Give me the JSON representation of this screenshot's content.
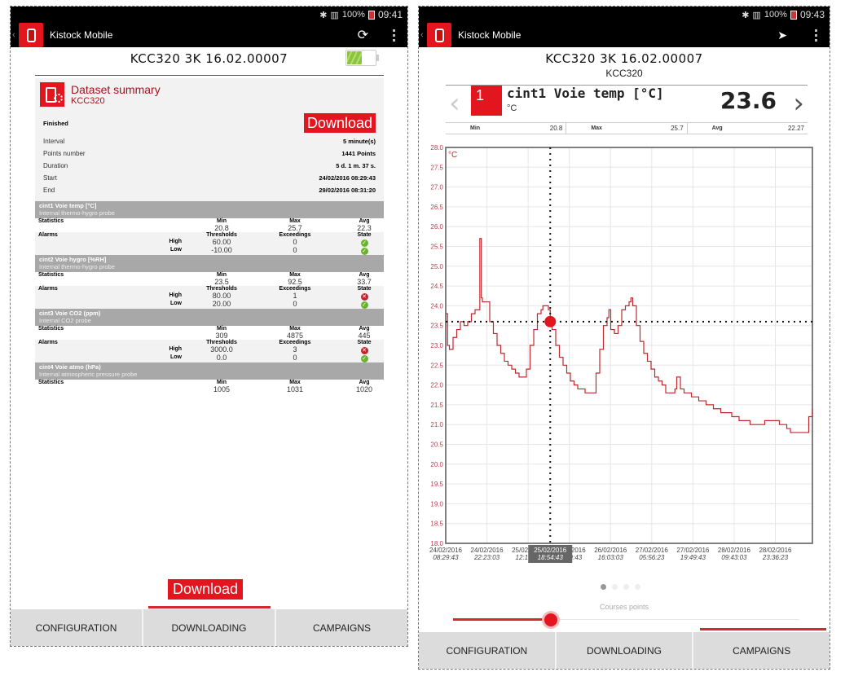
{
  "left_screen": {
    "status_bar": {
      "icons": [
        "bluetooth-icon",
        "signal-icon"
      ],
      "battery": "100%",
      "time": "09:41"
    },
    "app_bar": {
      "title": "Kistock Mobile",
      "actions": [
        "refresh-icon",
        "overflow-menu-icon"
      ]
    },
    "device_title": "KCC320 3K 16.02.00007",
    "summary": {
      "title": "Dataset summary",
      "subtitle": "KCC320",
      "status": "Finished",
      "download_label": "Download",
      "info": [
        {
          "label": "Interval",
          "value": "5 minute(s)"
        },
        {
          "label": "Points number",
          "value": "1441 Points"
        },
        {
          "label": "Duration",
          "value": "5 d. 1 m. 37 s."
        },
        {
          "label": "Start",
          "value": "24/02/2016 08:29:43"
        },
        {
          "label": "End",
          "value": "29/02/2016 08:31:20"
        }
      ],
      "labels": {
        "statistics": "Statistics",
        "alarms": "Alarms",
        "min": "Min",
        "max": "Max",
        "avg": "Avg",
        "thresholds": "Thresholds",
        "exceedings": "Exceedings",
        "state": "State",
        "high": "High",
        "low": "Low"
      },
      "channels": [
        {
          "name": "cint1 Voie temp [°C]",
          "probe": "Internal thermo-hygro probe",
          "min": "20.8",
          "max": "25.7",
          "avg": "22.3",
          "alarms": {
            "high": {
              "threshold": "60.00",
              "exceedings": "0",
              "state": "ok"
            },
            "low": {
              "threshold": "-10.00",
              "exceedings": "0",
              "state": "ok"
            }
          }
        },
        {
          "name": "cint2 Voie hygro [%RH]",
          "probe": "Internal thermo-hygro probe",
          "min": "23.5",
          "max": "92.5",
          "avg": "33.7",
          "alarms": {
            "high": {
              "threshold": "80.00",
              "exceedings": "1",
              "state": "error"
            },
            "low": {
              "threshold": "20.00",
              "exceedings": "0",
              "state": "ok"
            }
          }
        },
        {
          "name": "cint3 Voie CO2 (ppm)",
          "probe": "Internal CO2 probe",
          "min": "309",
          "max": "4875",
          "avg": "445",
          "alarms": {
            "high": {
              "threshold": "3000.0",
              "exceedings": "3",
              "state": "error"
            },
            "low": {
              "threshold": "0.0",
              "exceedings": "0",
              "state": "ok"
            }
          }
        },
        {
          "name": "cint4 Voie atmo (hPa)",
          "probe": "Internal atmospheric pressure probe",
          "min": "1005",
          "max": "1031",
          "avg": "1020"
        }
      ]
    },
    "bottom_download_label": "Download",
    "tabs": [
      {
        "label": "CONFIGURATION"
      },
      {
        "label": "DOWNLOADING",
        "active": true
      },
      {
        "label": "CAMPAIGNS"
      }
    ]
  },
  "right_screen": {
    "status_bar": {
      "icons": [
        "bluetooth-icon",
        "signal-icon"
      ],
      "battery": "100%",
      "time": "09:43"
    },
    "app_bar": {
      "title": "Kistock Mobile",
      "actions": [
        "send-icon",
        "overflow-menu-icon"
      ]
    },
    "device_title": "KCC320 3K 16.02.00007",
    "device_subtitle": "KCC320",
    "channel": {
      "number": "1",
      "name": "cint1 Voie temp [°C]",
      "unit": "°C",
      "current_value": "23.6"
    },
    "stats": {
      "min_label": "Min",
      "min": "20.8",
      "max_label": "Max",
      "max": "25.7",
      "avg_label": "Avg",
      "avg": "22.27"
    },
    "pager": {
      "pages": 4,
      "active": 0
    },
    "slider_label": "Courses points",
    "slider_position": 0.28,
    "tabs": [
      {
        "label": "CONFIGURATION"
      },
      {
        "label": "DOWNLOADING"
      },
      {
        "label": "CAMPAIGNS",
        "active": true
      }
    ]
  },
  "colors": {
    "brand_red": "#e3151f",
    "dark_red_text": "#a0151d",
    "line": "#c0282f",
    "tab_bg": "#dcdcdc",
    "ok": "#6ab42d",
    "error": "#c8202a"
  },
  "chart_data": {
    "type": "line",
    "title": "cint1 Voie temp [°C]",
    "xlabel": "",
    "ylabel": "°C",
    "ylim": [
      18.0,
      28.0
    ],
    "yticks": [
      "18.0",
      "18.5",
      "19.0",
      "19.5",
      "20.0",
      "20.5",
      "21.0",
      "21.5",
      "22.0",
      "22.5",
      "23.0",
      "23.5",
      "24.0",
      "24.5",
      "25.0",
      "25.5",
      "26.0",
      "26.5",
      "27.0",
      "27.5",
      "28.0"
    ],
    "xticks": [
      {
        "date": "24/02/2016",
        "time": "08:29:43"
      },
      {
        "date": "24/02/2016",
        "time": "22:23:03"
      },
      {
        "date": "25/02/2016",
        "time": "12:16:23"
      },
      {
        "date": "26/02/2016",
        "time": "02:09:43"
      },
      {
        "date": "26/02/2016",
        "time": "16:03:03"
      },
      {
        "date": "27/02/2016",
        "time": "05:56:23"
      },
      {
        "date": "27/02/2016",
        "time": "19:49:43"
      },
      {
        "date": "28/02/2016",
        "time": "09:43:03"
      },
      {
        "date": "28/02/2016",
        "time": "23:36:23"
      }
    ],
    "cursor": {
      "label_date": "25/02/2016",
      "label_time": "18:54:43",
      "x_frac": 0.285,
      "value": 23.6
    },
    "grid": true,
    "series": [
      {
        "name": "cint1 Voie temp",
        "points": [
          [
            0.0,
            23.8
          ],
          [
            0.005,
            23.0
          ],
          [
            0.01,
            22.9
          ],
          [
            0.02,
            23.2
          ],
          [
            0.03,
            23.4
          ],
          [
            0.04,
            23.6
          ],
          [
            0.05,
            23.5
          ],
          [
            0.06,
            23.6
          ],
          [
            0.07,
            23.8
          ],
          [
            0.08,
            23.9
          ],
          [
            0.09,
            23.9
          ],
          [
            0.093,
            25.7
          ],
          [
            0.097,
            24.2
          ],
          [
            0.1,
            24.1
          ],
          [
            0.11,
            24.1
          ],
          [
            0.12,
            23.6
          ],
          [
            0.13,
            23.3
          ],
          [
            0.14,
            23.0
          ],
          [
            0.15,
            22.8
          ],
          [
            0.16,
            22.6
          ],
          [
            0.17,
            22.5
          ],
          [
            0.18,
            22.4
          ],
          [
            0.19,
            22.3
          ],
          [
            0.2,
            22.2
          ],
          [
            0.215,
            22.2
          ],
          [
            0.22,
            22.4
          ],
          [
            0.23,
            23.0
          ],
          [
            0.24,
            23.4
          ],
          [
            0.25,
            23.8
          ],
          [
            0.26,
            23.9
          ],
          [
            0.265,
            24.0
          ],
          [
            0.275,
            24.0
          ],
          [
            0.28,
            23.9
          ],
          [
            0.285,
            23.6
          ],
          [
            0.29,
            23.4
          ],
          [
            0.3,
            23.0
          ],
          [
            0.31,
            22.7
          ],
          [
            0.32,
            22.5
          ],
          [
            0.33,
            22.3
          ],
          [
            0.34,
            22.1
          ],
          [
            0.35,
            22.0
          ],
          [
            0.36,
            21.9
          ],
          [
            0.38,
            21.8
          ],
          [
            0.4,
            21.8
          ],
          [
            0.41,
            22.3
          ],
          [
            0.42,
            22.9
          ],
          [
            0.43,
            23.5
          ],
          [
            0.44,
            23.7
          ],
          [
            0.445,
            23.9
          ],
          [
            0.45,
            23.4
          ],
          [
            0.46,
            23.3
          ],
          [
            0.47,
            23.5
          ],
          [
            0.48,
            23.9
          ],
          [
            0.49,
            24.0
          ],
          [
            0.5,
            24.1
          ],
          [
            0.505,
            24.2
          ],
          [
            0.51,
            24.0
          ],
          [
            0.52,
            23.5
          ],
          [
            0.53,
            23.1
          ],
          [
            0.54,
            22.8
          ],
          [
            0.55,
            22.6
          ],
          [
            0.56,
            22.4
          ],
          [
            0.57,
            22.2
          ],
          [
            0.58,
            22.1
          ],
          [
            0.59,
            22.0
          ],
          [
            0.6,
            21.8
          ],
          [
            0.62,
            21.8
          ],
          [
            0.625,
            21.9
          ],
          [
            0.63,
            22.2
          ],
          [
            0.64,
            21.9
          ],
          [
            0.65,
            21.8
          ],
          [
            0.67,
            21.7
          ],
          [
            0.69,
            21.6
          ],
          [
            0.71,
            21.5
          ],
          [
            0.73,
            21.4
          ],
          [
            0.75,
            21.3
          ],
          [
            0.78,
            21.2
          ],
          [
            0.8,
            21.1
          ],
          [
            0.83,
            21.0
          ],
          [
            0.86,
            21.0
          ],
          [
            0.87,
            21.1
          ],
          [
            0.9,
            21.1
          ],
          [
            0.91,
            21.0
          ],
          [
            0.93,
            20.9
          ],
          [
            0.94,
            20.8
          ],
          [
            0.98,
            20.8
          ],
          [
            0.99,
            21.2
          ],
          [
            1.0,
            21.4
          ]
        ]
      }
    ]
  }
}
